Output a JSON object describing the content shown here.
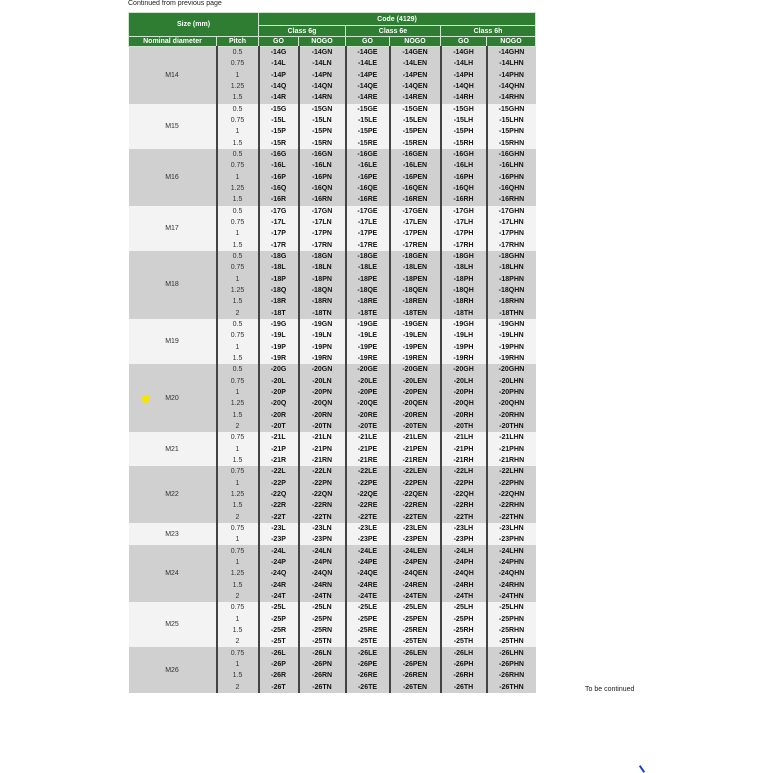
{
  "continued_top": "Continued from previous page",
  "continued_bottom": "To be continued",
  "header": {
    "size": "Size (mm)",
    "code": "Code (4129)",
    "classes": [
      "Class 6g",
      "Class 6e",
      "Class 6h"
    ],
    "nominal": "Nominal diameter",
    "pitch": "Pitch",
    "go": "GO",
    "nogo": "NOGO"
  },
  "colors": {
    "header_green": "#2e7d32",
    "band_gray": "#d0d0d1",
    "band_light": "#f3f3f4",
    "marker_yellow": "#f5e400"
  },
  "groups": [
    {
      "nominal": "M14",
      "rows": [
        {
          "pitch": "0.5",
          "codes": [
            "-14G",
            "-14GN",
            "-14GE",
            "-14GEN",
            "-14GH",
            "-14GHN"
          ]
        },
        {
          "pitch": "0.75",
          "codes": [
            "-14L",
            "-14LN",
            "-14LE",
            "-14LEN",
            "-14LH",
            "-14LHN"
          ]
        },
        {
          "pitch": "1",
          "codes": [
            "-14P",
            "-14PN",
            "-14PE",
            "-14PEN",
            "-14PH",
            "-14PHN"
          ]
        },
        {
          "pitch": "1.25",
          "codes": [
            "-14Q",
            "-14QN",
            "-14QE",
            "-14QEN",
            "-14QH",
            "-14QHN"
          ]
        },
        {
          "pitch": "1.5",
          "codes": [
            "-14R",
            "-14RN",
            "-14RE",
            "-14REN",
            "-14RH",
            "-14RHN"
          ]
        }
      ]
    },
    {
      "nominal": "M15",
      "rows": [
        {
          "pitch": "0.5",
          "codes": [
            "-15G",
            "-15GN",
            "-15GE",
            "-15GEN",
            "-15GH",
            "-15GHN"
          ]
        },
        {
          "pitch": "0.75",
          "codes": [
            "-15L",
            "-15LN",
            "-15LE",
            "-15LEN",
            "-15LH",
            "-15LHN"
          ]
        },
        {
          "pitch": "1",
          "codes": [
            "-15P",
            "-15PN",
            "-15PE",
            "-15PEN",
            "-15PH",
            "-15PHN"
          ]
        },
        {
          "pitch": "1.5",
          "codes": [
            "-15R",
            "-15RN",
            "-15RE",
            "-15REN",
            "-15RH",
            "-15RHN"
          ]
        }
      ]
    },
    {
      "nominal": "M16",
      "rows": [
        {
          "pitch": "0.5",
          "codes": [
            "-16G",
            "-16GN",
            "-16GE",
            "-16GEN",
            "-16GH",
            "-16GHN"
          ]
        },
        {
          "pitch": "0.75",
          "codes": [
            "-16L",
            "-16LN",
            "-16LE",
            "-16LEN",
            "-16LH",
            "-16LHN"
          ]
        },
        {
          "pitch": "1",
          "codes": [
            "-16P",
            "-16PN",
            "-16PE",
            "-16PEN",
            "-16PH",
            "-16PHN"
          ]
        },
        {
          "pitch": "1.25",
          "codes": [
            "-16Q",
            "-16QN",
            "-16QE",
            "-16QEN",
            "-16QH",
            "-16QHN"
          ]
        },
        {
          "pitch": "1.5",
          "codes": [
            "-16R",
            "-16RN",
            "-16RE",
            "-16REN",
            "-16RH",
            "-16RHN"
          ]
        }
      ]
    },
    {
      "nominal": "M17",
      "rows": [
        {
          "pitch": "0.5",
          "codes": [
            "-17G",
            "-17GN",
            "-17GE",
            "-17GEN",
            "-17GH",
            "-17GHN"
          ]
        },
        {
          "pitch": "0.75",
          "codes": [
            "-17L",
            "-17LN",
            "-17LE",
            "-17LEN",
            "-17LH",
            "-17LHN"
          ]
        },
        {
          "pitch": "1",
          "codes": [
            "-17P",
            "-17PN",
            "-17PE",
            "-17PEN",
            "-17PH",
            "-17PHN"
          ]
        },
        {
          "pitch": "1.5",
          "codes": [
            "-17R",
            "-17RN",
            "-17RE",
            "-17REN",
            "-17RH",
            "-17RHN"
          ]
        }
      ]
    },
    {
      "nominal": "M18",
      "rows": [
        {
          "pitch": "0.5",
          "codes": [
            "-18G",
            "-18GN",
            "-18GE",
            "-18GEN",
            "-18GH",
            "-18GHN"
          ]
        },
        {
          "pitch": "0.75",
          "codes": [
            "-18L",
            "-18LN",
            "-18LE",
            "-18LEN",
            "-18LH",
            "-18LHN"
          ]
        },
        {
          "pitch": "1",
          "codes": [
            "-18P",
            "-18PN",
            "-18PE",
            "-18PEN",
            "-18PH",
            "-18PHN"
          ]
        },
        {
          "pitch": "1.25",
          "codes": [
            "-18Q",
            "-18QN",
            "-18QE",
            "-18QEN",
            "-18QH",
            "-18QHN"
          ]
        },
        {
          "pitch": "1.5",
          "codes": [
            "-18R",
            "-18RN",
            "-18RE",
            "-18REN",
            "-18RH",
            "-18RHN"
          ]
        },
        {
          "pitch": "2",
          "codes": [
            "-18T",
            "-18TN",
            "-18TE",
            "-18TEN",
            "-18TH",
            "-18THN"
          ]
        }
      ]
    },
    {
      "nominal": "M19",
      "rows": [
        {
          "pitch": "0.5",
          "codes": [
            "-19G",
            "-19GN",
            "-19GE",
            "-19GEN",
            "-19GH",
            "-19GHN"
          ]
        },
        {
          "pitch": "0.75",
          "codes": [
            "-19L",
            "-19LN",
            "-19LE",
            "-19LEN",
            "-19LH",
            "-19LHN"
          ]
        },
        {
          "pitch": "1",
          "codes": [
            "-19P",
            "-19PN",
            "-19PE",
            "-19PEN",
            "-19PH",
            "-19PHN"
          ]
        },
        {
          "pitch": "1.5",
          "codes": [
            "-19R",
            "-19RN",
            "-19RE",
            "-19REN",
            "-19RH",
            "-19RHN"
          ]
        }
      ]
    },
    {
      "nominal": "M20",
      "rows": [
        {
          "pitch": "0.5",
          "codes": [
            "-20G",
            "-20GN",
            "-20GE",
            "-20GEN",
            "-20GH",
            "-20GHN"
          ]
        },
        {
          "pitch": "0.75",
          "codes": [
            "-20L",
            "-20LN",
            "-20LE",
            "-20LEN",
            "-20LH",
            "-20LHN"
          ]
        },
        {
          "pitch": "1",
          "codes": [
            "-20P",
            "-20PN",
            "-20PE",
            "-20PEN",
            "-20PH",
            "-20PHN"
          ]
        },
        {
          "pitch": "1.25",
          "codes": [
            "-20Q",
            "-20QN",
            "-20QE",
            "-20QEN",
            "-20QH",
            "-20QHN"
          ]
        },
        {
          "pitch": "1.5",
          "codes": [
            "-20R",
            "-20RN",
            "-20RE",
            "-20REN",
            "-20RH",
            "-20RHN"
          ]
        },
        {
          "pitch": "2",
          "codes": [
            "-20T",
            "-20TN",
            "-20TE",
            "-20TEN",
            "-20TH",
            "-20THN"
          ]
        }
      ]
    },
    {
      "nominal": "M21",
      "rows": [
        {
          "pitch": "0.75",
          "codes": [
            "-21L",
            "-21LN",
            "-21LE",
            "-21LEN",
            "-21LH",
            "-21LHN"
          ]
        },
        {
          "pitch": "1",
          "codes": [
            "-21P",
            "-21PN",
            "-21PE",
            "-21PEN",
            "-21PH",
            "-21PHN"
          ]
        },
        {
          "pitch": "1.5",
          "codes": [
            "-21R",
            "-21RN",
            "-21RE",
            "-21REN",
            "-21RH",
            "-21RHN"
          ]
        }
      ]
    },
    {
      "nominal": "M22",
      "rows": [
        {
          "pitch": "0.75",
          "codes": [
            "-22L",
            "-22LN",
            "-22LE",
            "-22LEN",
            "-22LH",
            "-22LHN"
          ]
        },
        {
          "pitch": "1",
          "codes": [
            "-22P",
            "-22PN",
            "-22PE",
            "-22PEN",
            "-22PH",
            "-22PHN"
          ]
        },
        {
          "pitch": "1.25",
          "codes": [
            "-22Q",
            "-22QN",
            "-22QE",
            "-22QEN",
            "-22QH",
            "-22QHN"
          ]
        },
        {
          "pitch": "1.5",
          "codes": [
            "-22R",
            "-22RN",
            "-22RE",
            "-22REN",
            "-22RH",
            "-22RHN"
          ]
        },
        {
          "pitch": "2",
          "codes": [
            "-22T",
            "-22TN",
            "-22TE",
            "-22TEN",
            "-22TH",
            "-22THN"
          ]
        }
      ]
    },
    {
      "nominal": "M23",
      "rows": [
        {
          "pitch": "0.75",
          "codes": [
            "-23L",
            "-23LN",
            "-23LE",
            "-23LEN",
            "-23LH",
            "-23LHN"
          ]
        },
        {
          "pitch": "1",
          "codes": [
            "-23P",
            "-23PN",
            "-23PE",
            "-23PEN",
            "-23PH",
            "-23PHN"
          ]
        }
      ]
    },
    {
      "nominal": "M24",
      "rows": [
        {
          "pitch": "0.75",
          "codes": [
            "-24L",
            "-24LN",
            "-24LE",
            "-24LEN",
            "-24LH",
            "-24LHN"
          ]
        },
        {
          "pitch": "1",
          "codes": [
            "-24P",
            "-24PN",
            "-24PE",
            "-24PEN",
            "-24PH",
            "-24PHN"
          ]
        },
        {
          "pitch": "1.25",
          "codes": [
            "-24Q",
            "-24QN",
            "-24QE",
            "-24QEN",
            "-24QH",
            "-24QHN"
          ]
        },
        {
          "pitch": "1.5",
          "codes": [
            "-24R",
            "-24RN",
            "-24RE",
            "-24REN",
            "-24RH",
            "-24RHN"
          ]
        },
        {
          "pitch": "2",
          "codes": [
            "-24T",
            "-24TN",
            "-24TE",
            "-24TEN",
            "-24TH",
            "-24THN"
          ]
        }
      ]
    },
    {
      "nominal": "M25",
      "rows": [
        {
          "pitch": "0.75",
          "codes": [
            "-25L",
            "-25LN",
            "-25LE",
            "-25LEN",
            "-25LH",
            "-25LHN"
          ]
        },
        {
          "pitch": "1",
          "codes": [
            "-25P",
            "-25PN",
            "-25PE",
            "-25PEN",
            "-25PH",
            "-25PHN"
          ]
        },
        {
          "pitch": "1.5",
          "codes": [
            "-25R",
            "-25RN",
            "-25RE",
            "-25REN",
            "-25RH",
            "-25RHN"
          ]
        },
        {
          "pitch": "2",
          "codes": [
            "-25T",
            "-25TN",
            "-25TE",
            "-25TEN",
            "-25TH",
            "-25THN"
          ]
        }
      ]
    },
    {
      "nominal": "M26",
      "rows": [
        {
          "pitch": "0.75",
          "codes": [
            "-26L",
            "-26LN",
            "-26LE",
            "-26LEN",
            "-26LH",
            "-26LHN"
          ]
        },
        {
          "pitch": "1",
          "codes": [
            "-26P",
            "-26PN",
            "-26PE",
            "-26PEN",
            "-26PH",
            "-26PHN"
          ]
        },
        {
          "pitch": "1.5",
          "codes": [
            "-26R",
            "-26RN",
            "-26RE",
            "-26REN",
            "-26RH",
            "-26RHN"
          ]
        },
        {
          "pitch": "2",
          "codes": [
            "-26T",
            "-26TN",
            "-26TE",
            "-26TEN",
            "-26TH",
            "-26THN"
          ]
        }
      ]
    }
  ]
}
